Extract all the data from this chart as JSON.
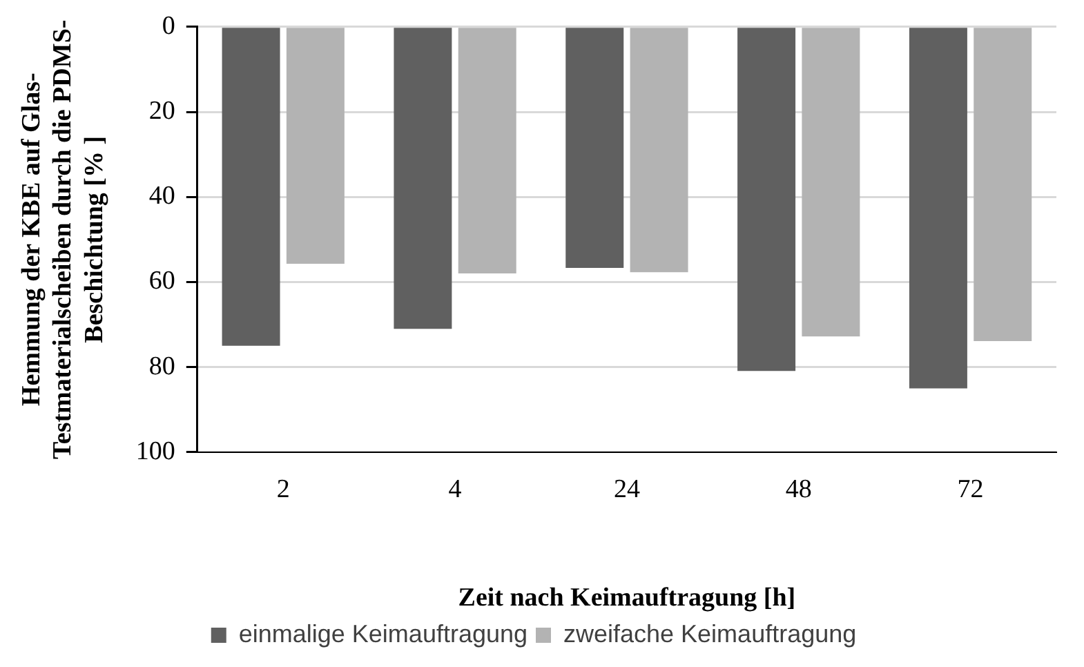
{
  "chart_data": {
    "type": "bar",
    "xlabel": "Zeit nach Keimauftragung [h]",
    "ylabel": "Hemmung der KBE auf Glas-Testmaterialscheiben durch die PDMS-Beschichtung [% ]",
    "categories": [
      "2",
      "4",
      "24",
      "48",
      "72"
    ],
    "series": [
      {
        "name": "einmalige Keimauftragung",
        "color": "#606060",
        "values": [
          75,
          71,
          56.7,
          80.9,
          85
        ]
      },
      {
        "name": "zweifache Keimauftragung",
        "color": "#b3b3b3",
        "values": [
          55.7,
          58,
          57.7,
          72.8,
          73.9
        ]
      }
    ],
    "ylim": [
      100,
      0
    ],
    "yticks": [
      0,
      20,
      40,
      60,
      80,
      100
    ],
    "grid": "y",
    "legend": "bottom"
  }
}
